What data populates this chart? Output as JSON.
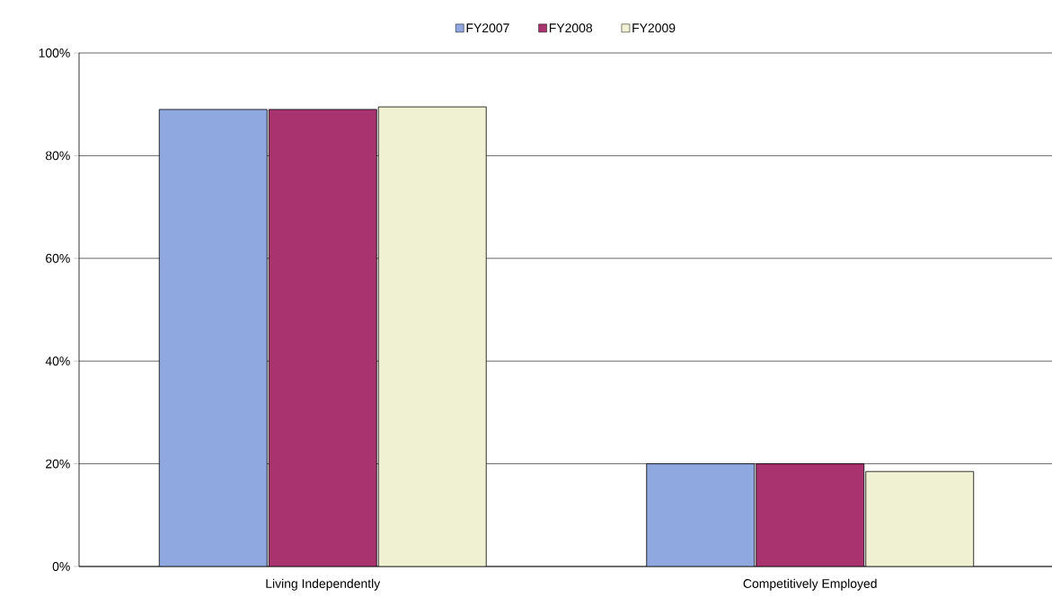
{
  "chart_data": {
    "type": "bar",
    "categories": [
      "Living Independently",
      "Competitively Employed"
    ],
    "series": [
      {
        "name": "FY2007",
        "color": "#8fa8e0",
        "values": [
          89,
          20
        ]
      },
      {
        "name": "FY2008",
        "color": "#a8336e",
        "values": [
          89,
          20
        ]
      },
      {
        "name": "FY2009",
        "color": "#f0f0d2",
        "values": [
          89.5,
          18.5
        ]
      }
    ],
    "ylim": [
      0,
      100
    ],
    "yticks": [
      {
        "value": 0,
        "label": "0%"
      },
      {
        "value": 20,
        "label": "20%"
      },
      {
        "value": 40,
        "label": "40%"
      },
      {
        "value": 60,
        "label": "60%"
      },
      {
        "value": 80,
        "label": "80%"
      },
      {
        "value": 100,
        "label": "100%"
      }
    ],
    "grid": "y",
    "legend": "top"
  }
}
